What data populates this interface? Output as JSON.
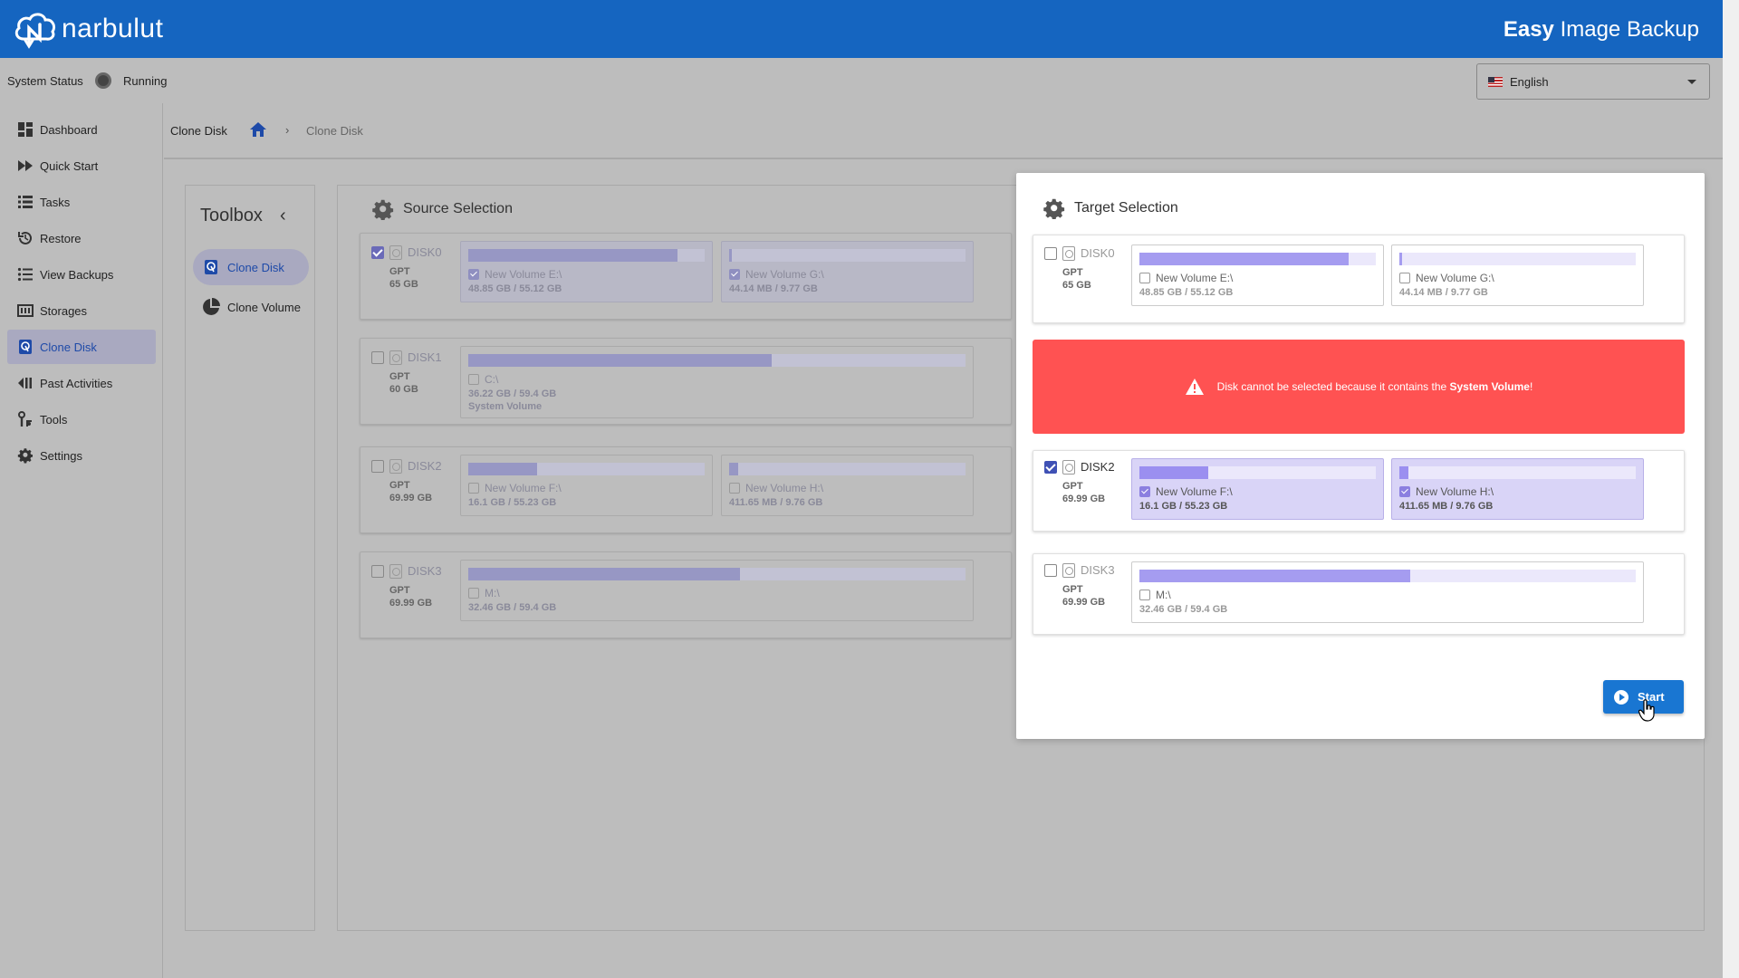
{
  "header": {
    "brand": "narbulut",
    "app_title_bold": "Easy",
    "app_title_rest": " Image Backup"
  },
  "status": {
    "label": "System Status",
    "value": "Running"
  },
  "language": {
    "selected": "English"
  },
  "sidebar": {
    "items": [
      {
        "label": "Dashboard",
        "icon": "dashboard-icon"
      },
      {
        "label": "Quick Start",
        "icon": "fast-forward-icon"
      },
      {
        "label": "Tasks",
        "icon": "list-icon"
      },
      {
        "label": "Restore",
        "icon": "restore-icon"
      },
      {
        "label": "View Backups",
        "icon": "bullet-list-icon"
      },
      {
        "label": "Storages",
        "icon": "storage-icon"
      },
      {
        "label": "Clone Disk",
        "icon": "disk-icon"
      },
      {
        "label": "Past Activities",
        "icon": "history-icon"
      },
      {
        "label": "Tools",
        "icon": "tools-icon"
      },
      {
        "label": "Settings",
        "icon": "gear-icon"
      }
    ]
  },
  "breadcrumb": {
    "first": "Clone Disk",
    "separator": "›",
    "current": "Clone Disk"
  },
  "toolbox": {
    "title": "Toolbox",
    "collapse": "‹",
    "items": [
      {
        "label": "Clone Disk"
      },
      {
        "label": "Clone Volume"
      }
    ]
  },
  "source": {
    "title": "Source Selection",
    "disks": [
      {
        "name": "DISK0",
        "type": "GPT",
        "size": "65 GB",
        "checked": true,
        "volumes": [
          {
            "name": "New Volume E:\\",
            "usage": "48.85 GB / 55.12 GB",
            "fill": 0.886,
            "checked": true
          },
          {
            "name": "New Volume G:\\",
            "usage": "44.14 MB / 9.77 GB",
            "fill": 0.005,
            "checked": true
          }
        ]
      },
      {
        "name": "DISK1",
        "type": "GPT",
        "size": "60 GB",
        "checked": false,
        "volumes": [
          {
            "name": "C:\\",
            "usage": "36.22 GB / 59.4 GB",
            "extra": "System Volume",
            "fill": 0.61,
            "checked": false
          }
        ]
      },
      {
        "name": "DISK2",
        "type": "GPT",
        "size": "69.99 GB",
        "checked": false,
        "volumes": [
          {
            "name": "New Volume F:\\",
            "usage": "16.1 GB / 55.23 GB",
            "fill": 0.29,
            "checked": false
          },
          {
            "name": "New Volume H:\\",
            "usage": "411.65 MB / 9.76 GB",
            "fill": 0.04,
            "checked": false
          }
        ]
      },
      {
        "name": "DISK3",
        "type": "GPT",
        "size": "69.99 GB",
        "checked": false,
        "volumes": [
          {
            "name": "M:\\",
            "usage": "32.46 GB / 59.4 GB",
            "fill": 0.546,
            "checked": false
          }
        ]
      }
    ]
  },
  "target": {
    "title": "Target Selection",
    "alert_prefix": "Disk cannot be selected because it contains the ",
    "alert_bold": "System Volume",
    "alert_suffix": "!",
    "start_label": "Start",
    "disks": [
      {
        "name": "DISK0",
        "type": "GPT",
        "size": "65 GB",
        "checked": false,
        "volumes": [
          {
            "name": "New Volume E:\\",
            "usage": "48.85 GB / 55.12 GB",
            "fill": 0.886,
            "checked": false
          },
          {
            "name": "New Volume G:\\",
            "usage": "44.14 MB / 9.77 GB",
            "fill": 0.005,
            "checked": false
          }
        ]
      },
      {
        "name": "DISK2",
        "type": "GPT",
        "size": "69.99 GB",
        "checked": true,
        "volumes": [
          {
            "name": "New Volume F:\\",
            "usage": "16.1 GB / 55.23 GB",
            "fill": 0.29,
            "checked": true
          },
          {
            "name": "New Volume H:\\",
            "usage": "411.65 MB / 9.76 GB",
            "fill": 0.04,
            "checked": true
          }
        ]
      },
      {
        "name": "DISK3",
        "type": "GPT",
        "size": "69.99 GB",
        "checked": false,
        "volumes": [
          {
            "name": "M:\\",
            "usage": "32.46 GB / 59.4 GB",
            "fill": 0.546,
            "checked": false
          }
        ]
      }
    ]
  },
  "colors": {
    "header": "#1565c0",
    "accent": "#1976d2",
    "alert": "#ff5252",
    "selected_volume": "#d9d4f7"
  }
}
